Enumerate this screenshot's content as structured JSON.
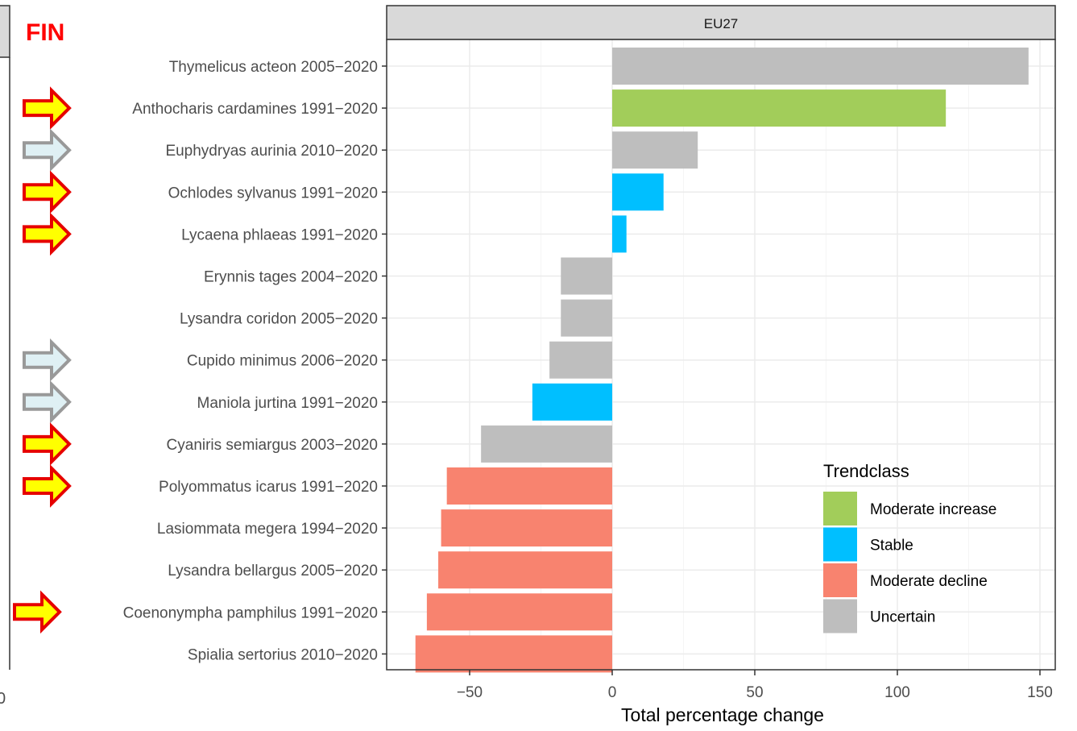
{
  "page_label": "FIN",
  "chart_data": {
    "type": "bar",
    "orientation": "horizontal",
    "facet_title": "EU27",
    "xlabel": "Total percentage change",
    "xlim": [
      -80,
      150
    ],
    "x_ticks": [
      -50,
      0,
      50,
      100,
      150
    ],
    "x_tick_labels": [
      "−50",
      "0",
      "50",
      "100",
      "150"
    ],
    "grid": true,
    "legend_title": "Trendclass",
    "legend_position": "bottom-right",
    "legend": [
      {
        "name": "Moderate increase",
        "color": "#a2cd5a"
      },
      {
        "name": "Stable",
        "color": "#00bfff"
      },
      {
        "name": "Moderate decline",
        "color": "#f8836f"
      },
      {
        "name": "Uncertain",
        "color": "#bebebe"
      }
    ],
    "categories": [
      "Thymelicus acteon 2005−2020",
      "Anthocharis cardamines 1991−2020",
      "Euphydryas aurinia 2010−2020",
      "Ochlodes sylvanus 1991−2020",
      "Lycaena phlaeas 1991−2020",
      "Erynnis tages 2004−2020",
      "Lysandra coridon 2005−2020",
      "Cupido minimus 2006−2020",
      "Maniola jurtina 1991−2020",
      "Cyaniris semiargus 2003−2020",
      "Polyommatus icarus 1991−2020",
      "Lasiommata megera 1994−2020",
      "Lysandra bellargus 2005−2020",
      "Coenonympha pamphilus 1991−2020",
      "Spialia sertorius 2010−2020"
    ],
    "values": [
      146,
      117,
      30,
      18,
      5,
      -18,
      -18,
      -22,
      -28,
      -46,
      -58,
      -60,
      -61,
      -65,
      -69
    ],
    "trendclass": [
      "Uncertain",
      "Moderate increase",
      "Uncertain",
      "Stable",
      "Stable",
      "Uncertain",
      "Uncertain",
      "Uncertain",
      "Stable",
      "Uncertain",
      "Moderate decline",
      "Moderate decline",
      "Moderate decline",
      "Moderate decline",
      "Moderate decline"
    ],
    "marker_arrows": [
      "none",
      "yellow",
      "grey",
      "yellow",
      "yellow",
      "none",
      "none",
      "grey",
      "grey",
      "yellow",
      "yellow",
      "none",
      "none",
      "yellow",
      "none"
    ],
    "arrow_colors": {
      "yellow": {
        "fill": "#ffff00",
        "stroke": "#e60000"
      },
      "grey": {
        "fill": "#dff0f4",
        "stroke": "#999999"
      }
    }
  },
  "colors": {
    "strip_fill": "#d9d9d9",
    "panel_border": "#333333",
    "grid_major": "#ebebeb",
    "grid_minor": "#f5f5f5",
    "label_text": "#4d4d4d",
    "fin_text": "#ff0000"
  }
}
